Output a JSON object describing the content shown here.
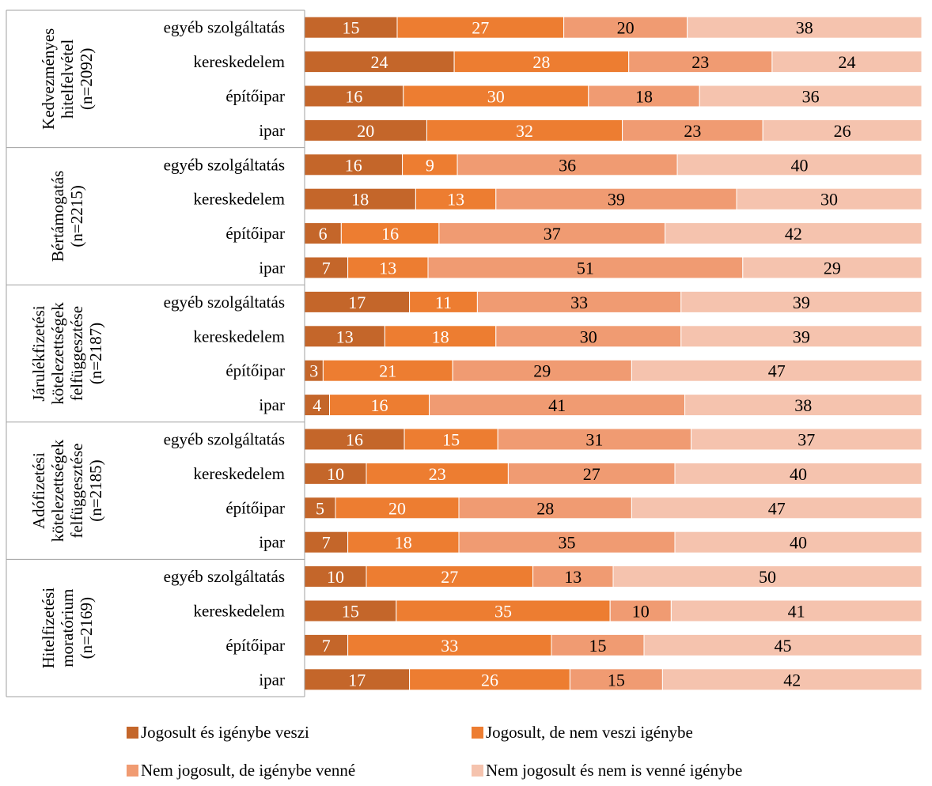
{
  "chart_data": {
    "type": "bar",
    "orientation": "horizontal",
    "stacked": "percent",
    "xlim": [
      0,
      100
    ],
    "grid": false,
    "legend_position": "bottom",
    "legend": [
      {
        "name": "Jogosult és igénybe veszi",
        "color": "#C4662A"
      },
      {
        "name": "Jogosult, de nem veszi igénybe",
        "color": "#ED7D31"
      },
      {
        "name": "Nem jogosult, de igénybe venné",
        "color": "#F09B72"
      },
      {
        "name": "Nem jogosult és nem is venné igénybe",
        "color": "#F5C3AE"
      }
    ],
    "groups": [
      {
        "label_lines": [
          "Kedvezményes",
          "hitelfelvétel",
          "(n=2092)"
        ],
        "rows": [
          {
            "category": "egyéb szolgáltatás",
            "values": [
              15,
              27,
              20,
              38
            ]
          },
          {
            "category": "kereskedelem",
            "values": [
              24,
              28,
              23,
              24
            ]
          },
          {
            "category": "építőipar",
            "values": [
              16,
              30,
              18,
              36
            ]
          },
          {
            "category": "ipar",
            "values": [
              20,
              32,
              23,
              26
            ]
          }
        ]
      },
      {
        "label_lines": [
          "Bértámogatás",
          "(n=2215)"
        ],
        "rows": [
          {
            "category": "egyéb szolgáltatás",
            "values": [
              16,
              9,
              36,
              40
            ]
          },
          {
            "category": "kereskedelem",
            "values": [
              18,
              13,
              39,
              30
            ]
          },
          {
            "category": "építőipar",
            "values": [
              6,
              16,
              37,
              42
            ]
          },
          {
            "category": "ipar",
            "values": [
              7,
              13,
              51,
              29
            ]
          }
        ]
      },
      {
        "label_lines": [
          "Járulékfizetési",
          "kötelezettségek",
          "felfüggesztése",
          "(n=2187)"
        ],
        "rows": [
          {
            "category": "egyéb szolgáltatás",
            "values": [
              17,
              11,
              33,
              39
            ]
          },
          {
            "category": "kereskedelem",
            "values": [
              13,
              18,
              30,
              39
            ]
          },
          {
            "category": "építőipar",
            "values": [
              3,
              21,
              29,
              47
            ]
          },
          {
            "category": "ipar",
            "values": [
              4,
              16,
              41,
              38
            ]
          }
        ]
      },
      {
        "label_lines": [
          "Adófizetési",
          "kötelezettségek",
          "felfüggesztése",
          "(n=2185)"
        ],
        "rows": [
          {
            "category": "egyéb szolgáltatás",
            "values": [
              16,
              15,
              31,
              37
            ]
          },
          {
            "category": "kereskedelem",
            "values": [
              10,
              23,
              27,
              40
            ]
          },
          {
            "category": "építőipar",
            "values": [
              5,
              20,
              28,
              47
            ]
          },
          {
            "category": "ipar",
            "values": [
              7,
              18,
              35,
              40
            ]
          }
        ]
      },
      {
        "label_lines": [
          "Hitelfizetési",
          "moratórium",
          "(n=2169)"
        ],
        "rows": [
          {
            "category": "egyéb szolgáltatás",
            "values": [
              10,
              27,
              13,
              50
            ]
          },
          {
            "category": "kereskedelem",
            "values": [
              15,
              35,
              10,
              41
            ]
          },
          {
            "category": "építőipar",
            "values": [
              7,
              33,
              15,
              45
            ]
          },
          {
            "category": "ipar",
            "values": [
              17,
              26,
              15,
              42
            ]
          }
        ]
      }
    ]
  }
}
